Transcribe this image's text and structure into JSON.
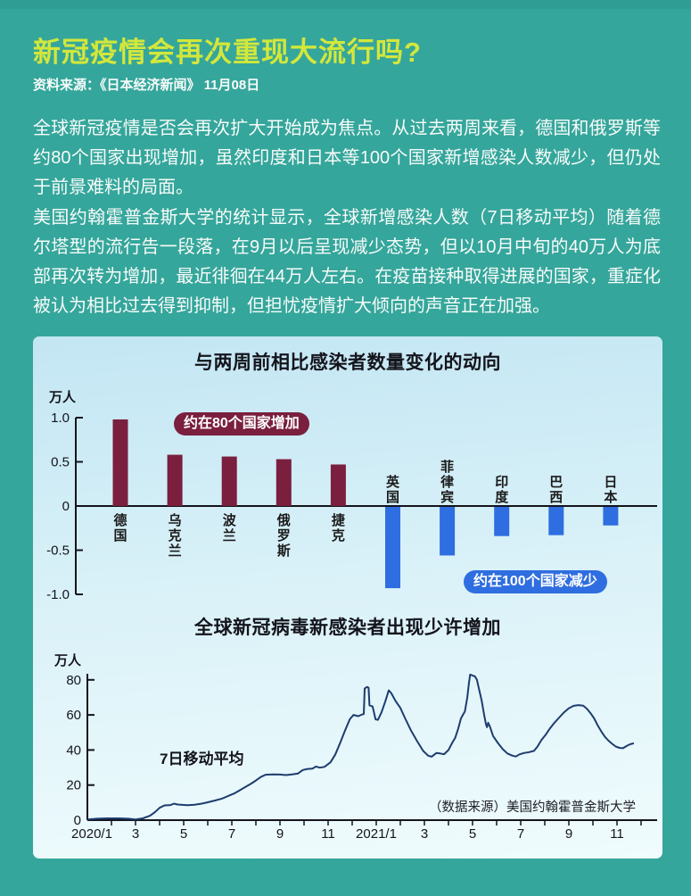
{
  "page": {
    "title": "新冠疫情会再次重现大流行吗?",
    "source": "资料来源：《日本经济新闻》 11月08日",
    "paragraph1": "全球新冠疫情是否会再次扩大开始成为焦点。从过去两周来看，德国和俄罗斯等约80个国家出现增加，虽然印度和日本等100个国家新增感染人数减少，但仍处于前景难料的局面。",
    "paragraph2": "美国约翰霍普金斯大学的统计显示，全球新增感染人数（7日移动平均）随着德尔塔型的流行告一段落，在9月以后呈现减少态势，但以10月中旬的40万人为底部再次转为增加，最近徘徊在44万人左右。在疫苗接种取得进展的国家，重症化被认为相比过去得到抑制，但担忧疫情扩大倾向的声音正在加强。"
  },
  "colors": {
    "background_teal": "#35a69b",
    "top_bar_teal": "#2f9d93",
    "title_yellow": "#d3e73b",
    "body_text": "#f7fbfa",
    "card_gradient_top": "#c3e6f3",
    "card_gradient_bottom": "#f0fcfd",
    "chart_text": "#14141c"
  },
  "chart_data": [
    {
      "type": "bar",
      "title": "与两周前相比感染者数量变化的动向",
      "unit_label": "万人",
      "categories": [
        "德国",
        "乌克兰",
        "波兰",
        "俄罗斯",
        "捷克",
        "英国",
        "菲律宾",
        "印度",
        "巴西",
        "日本"
      ],
      "values": [
        0.98,
        0.58,
        0.56,
        0.53,
        0.47,
        -0.92,
        -0.55,
        -0.33,
        -0.32,
        -0.21
      ],
      "increase_label": "约在80个国家增加",
      "decrease_label": "约在100个国家减少",
      "yticks": [
        "1.0",
        "0.5",
        "0",
        "-0.5",
        "-1.0"
      ],
      "ylim": [
        -1.0,
        1.0
      ],
      "positive_color": "#7a1f3e",
      "negative_color": "#2f6ee0",
      "axis_color": "#14141c"
    },
    {
      "type": "line",
      "title": "全球新冠病毒新感染者出现少许增加",
      "unit_label": "万人",
      "series_label": "7日移动平均",
      "source_note": "（数据来源）美国约翰霍普金斯大学",
      "yticks": [
        80,
        60,
        40,
        20,
        0
      ],
      "ylim": [
        0,
        85
      ],
      "x_tick_labels": [
        "2020/1",
        "3",
        "5",
        "7",
        "9",
        "11",
        "2021/1",
        "3",
        "5",
        "7",
        "9",
        "11"
      ],
      "x_tick_months": [
        0,
        2,
        4,
        6,
        8,
        10,
        12,
        14,
        16,
        18,
        20,
        22
      ],
      "line_color": "#1e3c6e",
      "axis_color": "#14141c",
      "points": [
        [
          0,
          0.4
        ],
        [
          0.4,
          0.8
        ],
        [
          0.8,
          1.0
        ],
        [
          1.3,
          1.0
        ],
        [
          1.7,
          0.8
        ],
        [
          2.0,
          0.4
        ],
        [
          2.3,
          1.0
        ],
        [
          2.6,
          2.5
        ],
        [
          2.8,
          4.5
        ],
        [
          3.0,
          7.0
        ],
        [
          3.2,
          8.4
        ],
        [
          3.45,
          8.6
        ],
        [
          3.6,
          9.4
        ],
        [
          3.75,
          8.9
        ],
        [
          3.95,
          8.7
        ],
        [
          4.15,
          8.5
        ],
        [
          4.45,
          8.8
        ],
        [
          4.75,
          9.4
        ],
        [
          5.0,
          10.2
        ],
        [
          5.3,
          11.2
        ],
        [
          5.6,
          12.3
        ],
        [
          5.85,
          13.8
        ],
        [
          6.1,
          15.2
        ],
        [
          6.35,
          17.2
        ],
        [
          6.6,
          19.2
        ],
        [
          6.8,
          20.8
        ],
        [
          7.0,
          22.6
        ],
        [
          7.2,
          24.6
        ],
        [
          7.4,
          25.9
        ],
        [
          7.7,
          26.1
        ],
        [
          8.0,
          26.0
        ],
        [
          8.25,
          25.7
        ],
        [
          8.5,
          26.1
        ],
        [
          8.75,
          26.6
        ],
        [
          8.95,
          28.6
        ],
        [
          9.15,
          29.2
        ],
        [
          9.35,
          29.4
        ],
        [
          9.5,
          30.6
        ],
        [
          9.65,
          29.9
        ],
        [
          9.85,
          30.4
        ],
        [
          10.1,
          33.0
        ],
        [
          10.3,
          37.5
        ],
        [
          10.5,
          44.0
        ],
        [
          10.7,
          51.0
        ],
        [
          10.9,
          57.5
        ],
        [
          11.05,
          60.0
        ],
        [
          11.25,
          59.3
        ],
        [
          11.42,
          60.3
        ],
        [
          11.48,
          60.5
        ],
        [
          11.52,
          75.0
        ],
        [
          11.62,
          76.0
        ],
        [
          11.68,
          75.5
        ],
        [
          11.72,
          65.5
        ],
        [
          11.85,
          64.8
        ],
        [
          11.97,
          57.5
        ],
        [
          12.07,
          57.2
        ],
        [
          12.22,
          61.5
        ],
        [
          12.38,
          68.0
        ],
        [
          12.52,
          74.0
        ],
        [
          12.62,
          72.5
        ],
        [
          12.8,
          68.0
        ],
        [
          13.0,
          64.0
        ],
        [
          13.2,
          58.0
        ],
        [
          13.45,
          51.0
        ],
        [
          13.7,
          45.0
        ],
        [
          13.95,
          39.5
        ],
        [
          14.15,
          36.8
        ],
        [
          14.3,
          36.2
        ],
        [
          14.5,
          38.3
        ],
        [
          14.65,
          38.0
        ],
        [
          14.82,
          37.6
        ],
        [
          15.0,
          40.0
        ],
        [
          15.15,
          44.0
        ],
        [
          15.28,
          47.0
        ],
        [
          15.4,
          52.0
        ],
        [
          15.52,
          58.0
        ],
        [
          15.62,
          60.5
        ],
        [
          15.68,
          62.0
        ],
        [
          15.78,
          70.0
        ],
        [
          15.85,
          78.0
        ],
        [
          15.9,
          83.0
        ],
        [
          16.0,
          82.5
        ],
        [
          16.1,
          82.0
        ],
        [
          16.18,
          80.0
        ],
        [
          16.28,
          74.0
        ],
        [
          16.38,
          68.0
        ],
        [
          16.48,
          60.0
        ],
        [
          16.55,
          55.0
        ],
        [
          16.6,
          53.0
        ],
        [
          16.65,
          55.5
        ],
        [
          16.72,
          53.5
        ],
        [
          16.85,
          48.0
        ],
        [
          17.05,
          44.0
        ],
        [
          17.25,
          40.5
        ],
        [
          17.45,
          38.0
        ],
        [
          17.65,
          36.8
        ],
        [
          17.8,
          36.3
        ],
        [
          17.95,
          37.5
        ],
        [
          18.15,
          38.3
        ],
        [
          18.35,
          38.8
        ],
        [
          18.55,
          39.5
        ],
        [
          18.7,
          42.0
        ],
        [
          18.85,
          45.5
        ],
        [
          19.05,
          49.0
        ],
        [
          19.2,
          52.0
        ],
        [
          19.4,
          55.5
        ],
        [
          19.6,
          58.5
        ],
        [
          19.8,
          61.5
        ],
        [
          20.0,
          63.8
        ],
        [
          20.2,
          65.2
        ],
        [
          20.4,
          65.6
        ],
        [
          20.6,
          65.3
        ],
        [
          20.75,
          63.5
        ],
        [
          20.9,
          61.0
        ],
        [
          21.05,
          58.0
        ],
        [
          21.2,
          54.0
        ],
        [
          21.35,
          50.5
        ],
        [
          21.5,
          47.5
        ],
        [
          21.65,
          45.3
        ],
        [
          21.8,
          43.5
        ],
        [
          21.95,
          42.0
        ],
        [
          22.1,
          41.2
        ],
        [
          22.25,
          41.0
        ],
        [
          22.4,
          42.3
        ],
        [
          22.55,
          43.3
        ],
        [
          22.7,
          43.8
        ]
      ]
    }
  ]
}
